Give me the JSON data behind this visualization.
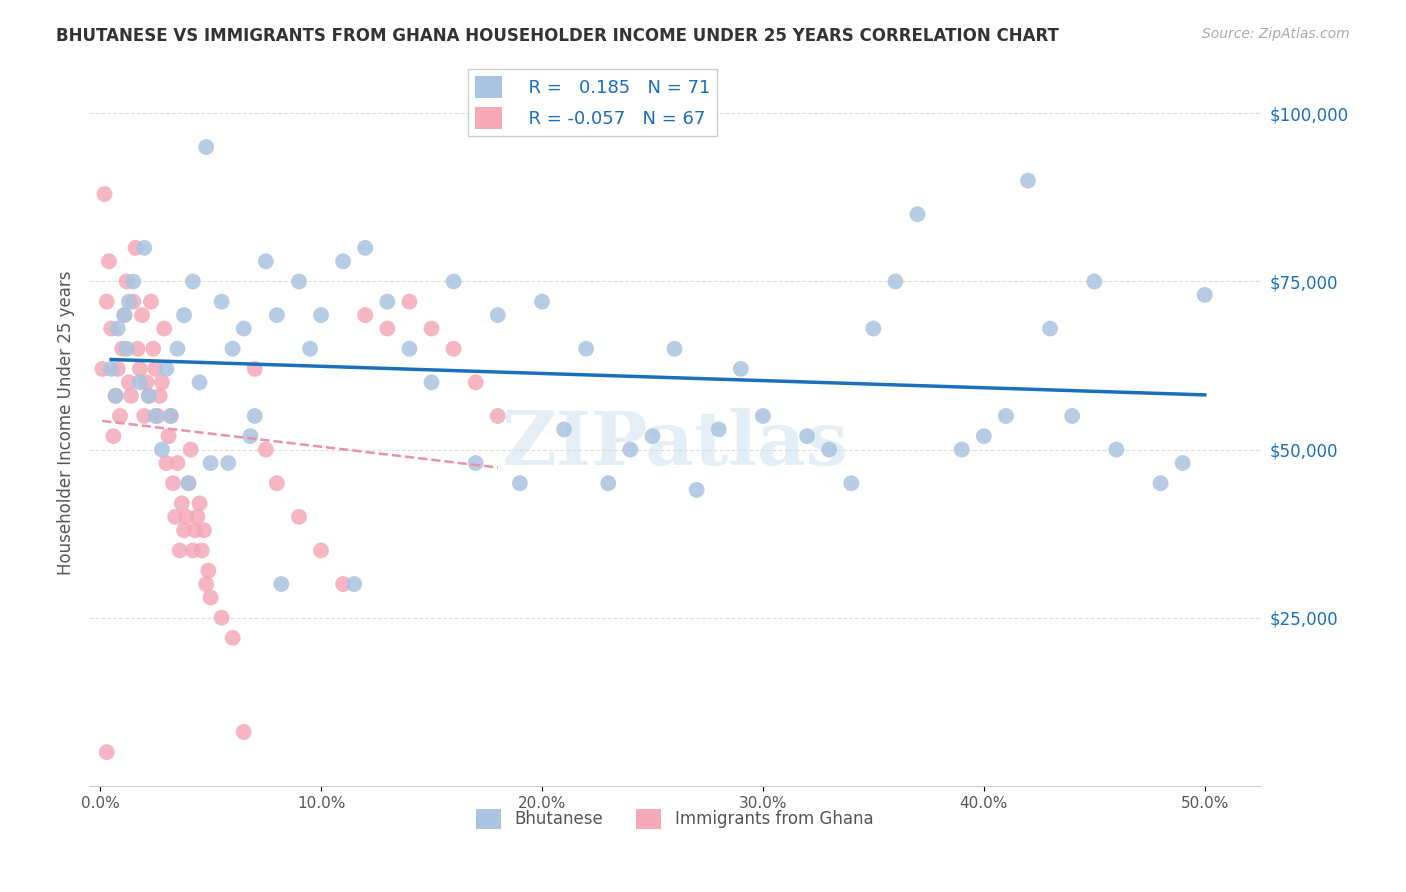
{
  "title": "BHUTANESE VS IMMIGRANTS FROM GHANA HOUSEHOLDER INCOME UNDER 25 YEARS CORRELATION CHART",
  "source": "Source: ZipAtlas.com",
  "xlabel_ticks": [
    "0.0%",
    "10.0%",
    "20.0%",
    "30.0%",
    "40.0%",
    "50.0%"
  ],
  "xlabel_vals": [
    0.0,
    0.1,
    0.2,
    0.3,
    0.4,
    0.5
  ],
  "ylabel": "Householder Income Under 25 years",
  "ylabel_right_ticks": [
    "$25,000",
    "$50,000",
    "$75,000",
    "$100,000"
  ],
  "ylabel_right_vals": [
    25000,
    50000,
    75000,
    100000
  ],
  "ylim": [
    0,
    108000
  ],
  "xlim": [
    -0.005,
    0.525
  ],
  "color_bhutanese": "#a8c4e0",
  "color_ghana": "#f4a8b8",
  "trendline_bhutanese_color": "#1a6fbd",
  "trendline_ghana_color": "#e891a8",
  "watermark": "ZIPatlas",
  "bhutanese_x": [
    0.005,
    0.012,
    0.048,
    0.008,
    0.011,
    0.013,
    0.018,
    0.022,
    0.025,
    0.03,
    0.035,
    0.038,
    0.042,
    0.045,
    0.05,
    0.055,
    0.06,
    0.065,
    0.07,
    0.075,
    0.08,
    0.09,
    0.095,
    0.1,
    0.11,
    0.12,
    0.13,
    0.14,
    0.15,
    0.16,
    0.17,
    0.18,
    0.19,
    0.2,
    0.21,
    0.22,
    0.23,
    0.24,
    0.25,
    0.26,
    0.27,
    0.28,
    0.29,
    0.3,
    0.32,
    0.33,
    0.34,
    0.35,
    0.36,
    0.37,
    0.39,
    0.4,
    0.41,
    0.42,
    0.43,
    0.44,
    0.45,
    0.46,
    0.48,
    0.49,
    0.5,
    0.007,
    0.015,
    0.02,
    0.028,
    0.032,
    0.04,
    0.058,
    0.068,
    0.082,
    0.115
  ],
  "bhutanese_y": [
    62000,
    65000,
    95000,
    68000,
    70000,
    72000,
    60000,
    58000,
    55000,
    62000,
    65000,
    70000,
    75000,
    60000,
    48000,
    72000,
    65000,
    68000,
    55000,
    78000,
    70000,
    75000,
    65000,
    70000,
    78000,
    80000,
    72000,
    65000,
    60000,
    75000,
    48000,
    70000,
    45000,
    72000,
    53000,
    65000,
    45000,
    50000,
    52000,
    65000,
    44000,
    53000,
    62000,
    55000,
    52000,
    50000,
    45000,
    68000,
    75000,
    85000,
    50000,
    52000,
    55000,
    90000,
    68000,
    55000,
    75000,
    50000,
    45000,
    48000,
    73000,
    58000,
    75000,
    80000,
    50000,
    55000,
    45000,
    48000,
    52000,
    30000,
    30000
  ],
  "ghana_x": [
    0.002,
    0.003,
    0.004,
    0.005,
    0.006,
    0.007,
    0.008,
    0.009,
    0.01,
    0.011,
    0.012,
    0.013,
    0.014,
    0.015,
    0.016,
    0.017,
    0.018,
    0.019,
    0.02,
    0.021,
    0.022,
    0.023,
    0.024,
    0.025,
    0.026,
    0.027,
    0.028,
    0.029,
    0.03,
    0.031,
    0.032,
    0.033,
    0.034,
    0.035,
    0.036,
    0.037,
    0.038,
    0.039,
    0.04,
    0.041,
    0.042,
    0.043,
    0.044,
    0.045,
    0.046,
    0.047,
    0.048,
    0.049,
    0.05,
    0.055,
    0.06,
    0.065,
    0.07,
    0.075,
    0.08,
    0.09,
    0.1,
    0.11,
    0.12,
    0.13,
    0.14,
    0.15,
    0.16,
    0.17,
    0.18,
    0.001,
    0.003
  ],
  "ghana_y": [
    88000,
    72000,
    78000,
    68000,
    52000,
    58000,
    62000,
    55000,
    65000,
    70000,
    75000,
    60000,
    58000,
    72000,
    80000,
    65000,
    62000,
    70000,
    55000,
    60000,
    58000,
    72000,
    65000,
    62000,
    55000,
    58000,
    60000,
    68000,
    48000,
    52000,
    55000,
    45000,
    40000,
    48000,
    35000,
    42000,
    38000,
    40000,
    45000,
    50000,
    35000,
    38000,
    40000,
    42000,
    35000,
    38000,
    30000,
    32000,
    28000,
    25000,
    22000,
    8000,
    62000,
    50000,
    45000,
    40000,
    35000,
    30000,
    70000,
    68000,
    72000,
    68000,
    65000,
    60000,
    55000,
    62000,
    5000
  ]
}
